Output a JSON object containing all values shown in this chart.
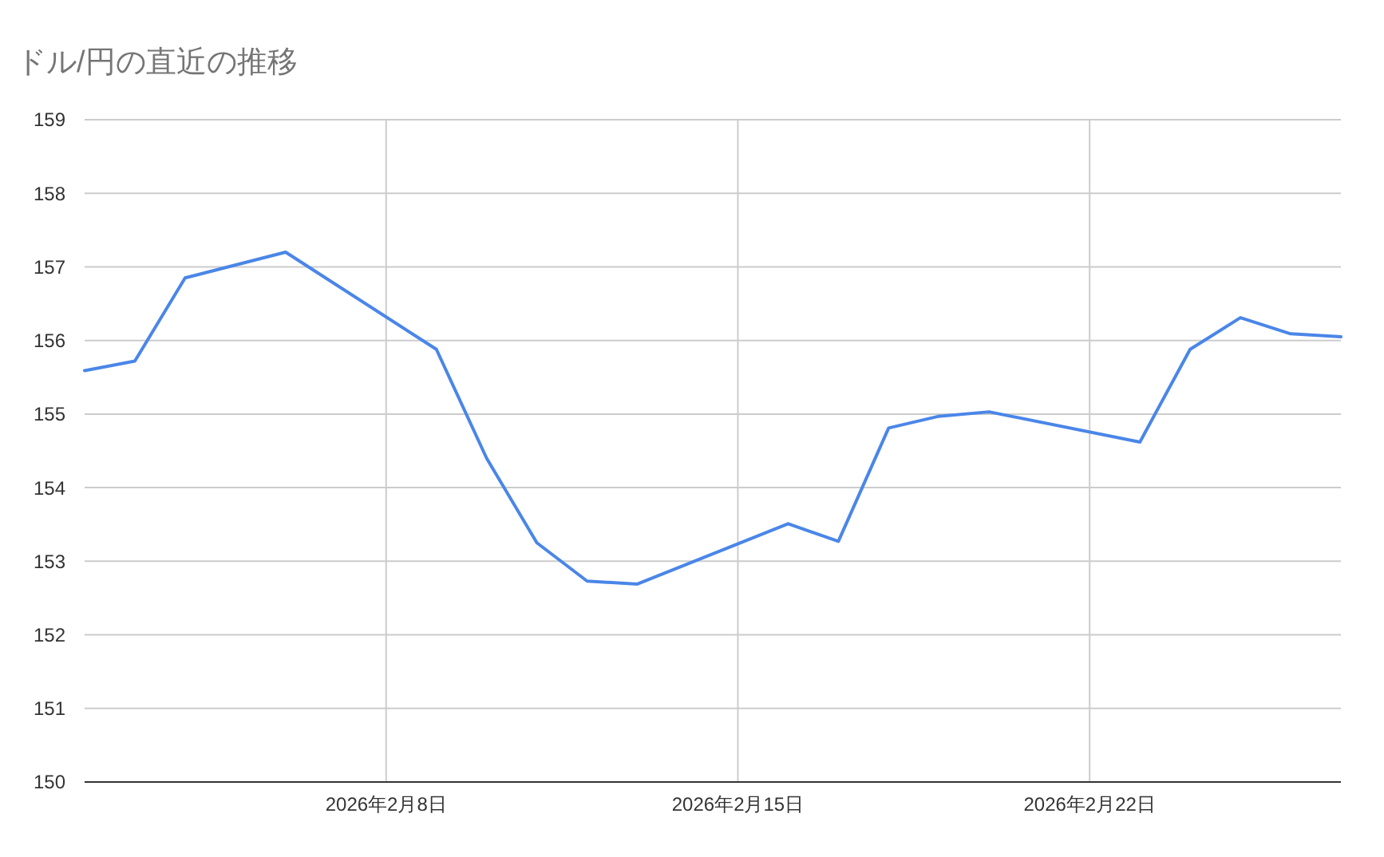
{
  "chart_data": {
    "type": "line",
    "title": "ドル/円の直近の推移",
    "x": [
      "2026-02-02",
      "2026-02-03",
      "2026-02-04",
      "2026-02-06",
      "2026-02-09",
      "2026-02-10",
      "2026-02-11",
      "2026-02-12",
      "2026-02-13",
      "2026-02-16",
      "2026-02-17",
      "2026-02-18",
      "2026-02-19",
      "2026-02-20",
      "2026-02-23",
      "2026-02-24",
      "2026-02-25",
      "2026-02-26",
      "2026-02-27"
    ],
    "series": [
      {
        "color": "#4a86e8",
        "values": [
          155.59,
          155.72,
          156.85,
          157.2,
          155.88,
          154.4,
          153.25,
          152.73,
          152.69,
          153.51,
          153.27,
          154.81,
          154.97,
          155.03,
          154.62,
          155.88,
          156.31,
          156.09,
          156.05
        ]
      }
    ],
    "xlim": [
      "2026-02-02",
      "2026-02-27"
    ],
    "xticks": [
      {
        "value": "2026-02-08",
        "label": "2026年2月8日"
      },
      {
        "value": "2026-02-15",
        "label": "2026年2月15日"
      },
      {
        "value": "2026-02-22",
        "label": "2026年2月22日"
      }
    ],
    "ylim": [
      150,
      159
    ],
    "yticks": [
      150,
      151,
      152,
      153,
      154,
      155,
      156,
      157,
      158,
      159
    ],
    "grid": true,
    "marker": "none",
    "line_style": "solid"
  }
}
